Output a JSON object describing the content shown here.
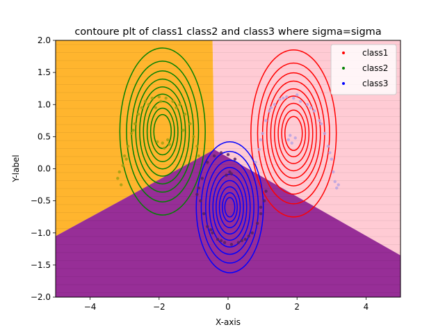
{
  "chart_data": {
    "type": "scatter",
    "title": "contoure plt of class1 class2 and class3 where sigma=sigma",
    "xlabel": "X-axis",
    "ylabel": "Y-label",
    "xlim": [
      -5,
      5
    ],
    "ylim": [
      -2,
      2
    ],
    "xticks": [
      -4,
      -2,
      0,
      2,
      4
    ],
    "yticks": [
      -2.0,
      -1.5,
      -1.0,
      -0.5,
      0.0,
      0.5,
      1.0,
      1.5,
      2.0
    ],
    "xtick_labels": [
      "−4",
      "−2",
      "0",
      "2",
      "4"
    ],
    "ytick_labels": [
      "−2.0",
      "−1.5",
      "−1.0",
      "−0.5",
      "0.0",
      "0.5",
      "1.0",
      "1.5",
      "2.0"
    ],
    "grid": false,
    "legend_position": "top-right",
    "decision_regions": [
      {
        "class": "class2",
        "color": "#FFA500",
        "polygon": [
          [
            -5,
            2
          ],
          [
            -0.45,
            2
          ],
          [
            -0.4,
            0.3
          ],
          [
            -5,
            -1.05
          ]
        ]
      },
      {
        "class": "class1",
        "color": "#FFC0CB",
        "polygon": [
          [
            -0.45,
            2
          ],
          [
            5,
            2
          ],
          [
            5,
            -1.35
          ],
          [
            -0.4,
            0.3
          ]
        ]
      },
      {
        "class": "class3",
        "color": "#800080",
        "polygon": [
          [
            -5,
            -1.05
          ],
          [
            -0.4,
            0.3
          ],
          [
            5,
            -1.35
          ],
          [
            5,
            -2
          ],
          [
            -5,
            -2
          ]
        ]
      }
    ],
    "series": [
      {
        "name": "class1",
        "color": "#ff0000",
        "center": [
          1.9,
          0.55
        ],
        "radii": [
          0.35,
          0.48,
          0.62,
          0.77,
          0.92,
          1.08,
          1.25,
          1.45,
          1.72
        ]
      },
      {
        "name": "class2",
        "color": "#008000",
        "center": [
          -1.9,
          0.58
        ],
        "radii": [
          0.35,
          0.48,
          0.62,
          0.77,
          0.92,
          1.08,
          1.25,
          1.45,
          1.72
        ]
      },
      {
        "name": "class3",
        "color": "#0000ff",
        "center": [
          0.05,
          -0.6
        ],
        "radii": [
          0.2,
          0.3,
          0.42,
          0.55,
          0.68,
          0.82,
          0.97,
          1.15,
          1.35
        ]
      }
    ],
    "scatter_points": [
      {
        "series": "class2",
        "points": [
          [
            -3.2,
            -0.15
          ],
          [
            -3.1,
            -0.25
          ],
          [
            -3.05,
            0.05
          ],
          [
            -3.0,
            0.2
          ],
          [
            -2.9,
            0.35
          ],
          [
            -2.8,
            0.55
          ],
          [
            -2.7,
            0.7
          ],
          [
            -2.6,
            0.85
          ],
          [
            -2.5,
            0.95
          ],
          [
            -2.4,
            1.05
          ],
          [
            -2.2,
            1.1
          ],
          [
            -2.0,
            1.12
          ],
          [
            -1.8,
            1.1
          ],
          [
            -1.6,
            1.05
          ],
          [
            -1.4,
            1.0
          ],
          [
            -1.25,
            0.85
          ],
          [
            -1.1,
            0.7
          ],
          [
            -1.0,
            0.5
          ],
          [
            -0.9,
            0.35
          ],
          [
            -0.85,
            0.2
          ],
          [
            -1.9,
            0.4
          ],
          [
            -1.85,
            0.32
          ],
          [
            -1.75,
            0.45
          ],
          [
            -1.7,
            0.38
          ],
          [
            -2.05,
            0.42
          ],
          [
            -3.15,
            -0.05
          ],
          [
            -2.95,
            0.15
          ],
          [
            -2.75,
            0.6
          ],
          [
            -2.3,
            1.0
          ],
          [
            -1.5,
            0.95
          ],
          [
            -1.3,
            0.6
          ],
          [
            -2.1,
            0.95
          ],
          [
            -1.95,
            1.05
          ]
        ]
      },
      {
        "series": "class1",
        "points": [
          [
            0.8,
            0.1
          ],
          [
            0.9,
            0.3
          ],
          [
            1.0,
            0.55
          ],
          [
            1.1,
            0.75
          ],
          [
            1.2,
            0.9
          ],
          [
            1.35,
            1.0
          ],
          [
            1.5,
            1.08
          ],
          [
            1.7,
            1.12
          ],
          [
            1.9,
            1.1
          ],
          [
            2.1,
            1.05
          ],
          [
            2.3,
            1.0
          ],
          [
            2.5,
            0.9
          ],
          [
            2.65,
            0.75
          ],
          [
            2.8,
            0.55
          ],
          [
            2.9,
            0.35
          ],
          [
            3.0,
            0.15
          ],
          [
            3.05,
            -0.05
          ],
          [
            3.1,
            -0.2
          ],
          [
            3.15,
            -0.3
          ],
          [
            1.75,
            0.45
          ],
          [
            1.85,
            0.4
          ],
          [
            1.95,
            0.48
          ],
          [
            1.8,
            0.52
          ],
          [
            0.95,
            0.45
          ],
          [
            1.25,
            0.95
          ],
          [
            2.4,
            0.95
          ],
          [
            2.7,
            0.7
          ],
          [
            2.95,
            0.25
          ],
          [
            3.2,
            -0.25
          ],
          [
            1.6,
            1.1
          ],
          [
            2.0,
            1.15
          ]
        ]
      },
      {
        "series": "class3",
        "points": [
          [
            -0.85,
            -0.3
          ],
          [
            -0.8,
            -0.5
          ],
          [
            -0.7,
            -0.7
          ],
          [
            -0.6,
            -0.9
          ],
          [
            -0.45,
            -1.0
          ],
          [
            -0.3,
            -1.1
          ],
          [
            -0.1,
            -1.15
          ],
          [
            0.1,
            -1.18
          ],
          [
            0.3,
            -1.15
          ],
          [
            0.5,
            -1.1
          ],
          [
            0.7,
            -1.0
          ],
          [
            0.85,
            -0.85
          ],
          [
            0.95,
            -0.7
          ],
          [
            1.05,
            -0.5
          ],
          [
            1.1,
            -0.35
          ],
          [
            -0.6,
            0.1
          ],
          [
            -0.4,
            0.2
          ],
          [
            -0.2,
            0.25
          ],
          [
            0.0,
            0.22
          ],
          [
            0.2,
            0.15
          ],
          [
            0.05,
            -0.05
          ],
          [
            -0.05,
            -0.1
          ],
          [
            0.1,
            -0.08
          ],
          [
            -0.75,
            -0.15
          ],
          [
            -0.5,
            -0.95
          ],
          [
            0.4,
            -1.12
          ],
          [
            0.95,
            -0.6
          ],
          [
            -0.9,
            -0.4
          ],
          [
            0.6,
            -1.05
          ],
          [
            -0.2,
            -1.12
          ]
        ]
      }
    ],
    "legend": [
      {
        "label": "class1",
        "color": "#ff0000"
      },
      {
        "label": "class2",
        "color": "#008000"
      },
      {
        "label": "class3",
        "color": "#0000ff"
      }
    ]
  }
}
